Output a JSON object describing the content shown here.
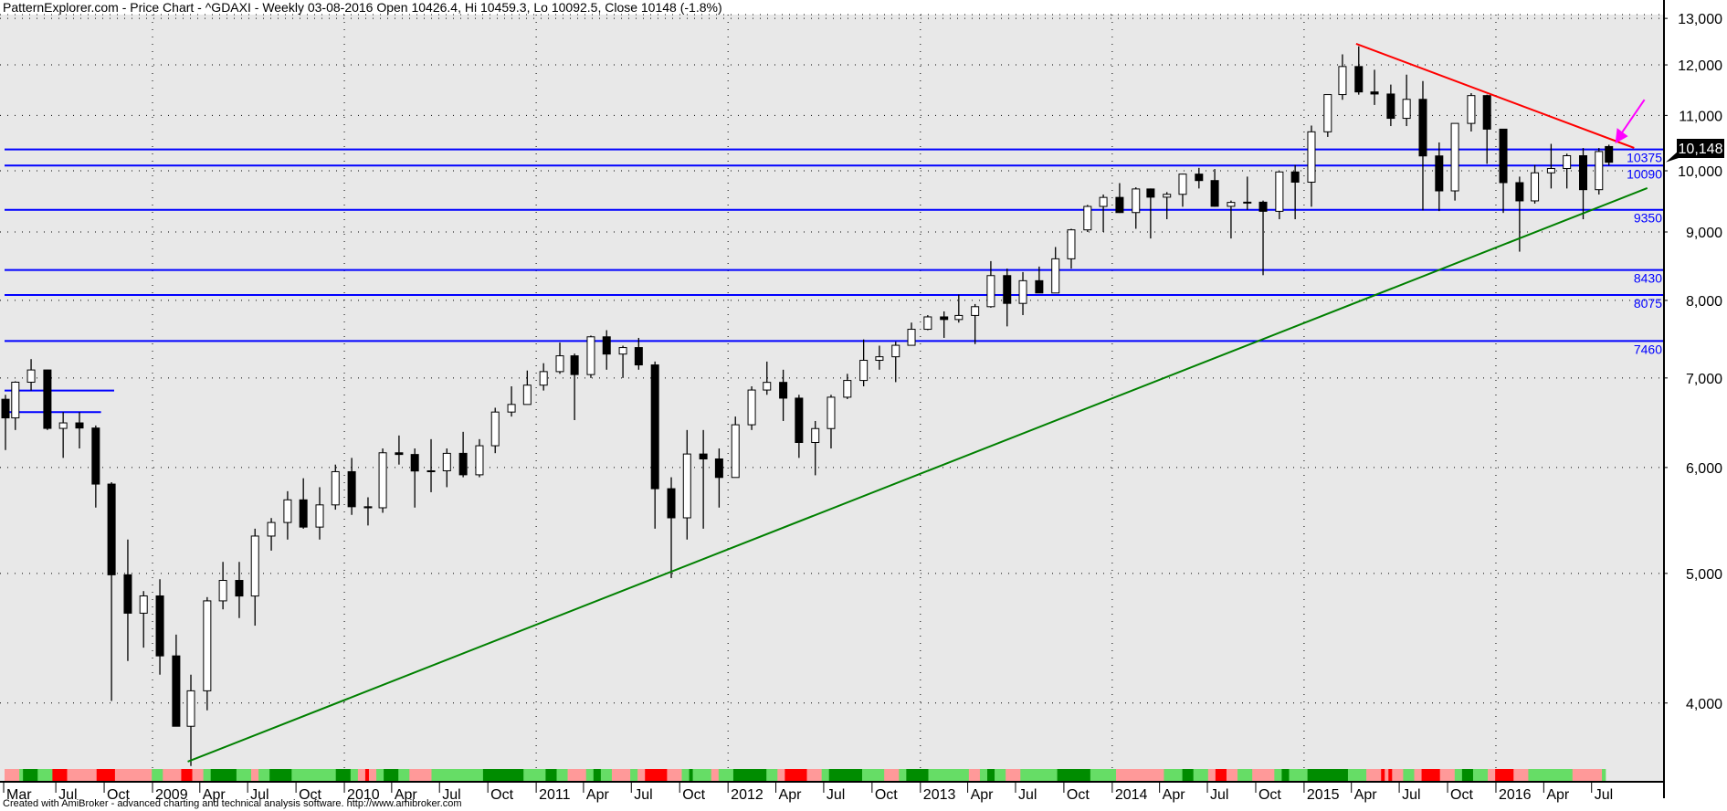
{
  "header": {
    "title": "PatternExplorer.com - Price Chart - ^GDAXI - Weekly 03-08-2016 Open 10426.4, Hi 10459.3, Lo 10092.5, Close 10148 (-1.8%)"
  },
  "footer": {
    "text": "Created with AmiBroker - advanced charting and technical analysis software. http://www.amibroker.com"
  },
  "colors": {
    "background": "#e8e8e8",
    "levels": "#0000ff",
    "support_trend": "#008000",
    "resistance_trend": "#ff0000",
    "arrow": "#ff00ff",
    "band_dark_green": "#008c00",
    "band_light_green": "#66dd66",
    "band_pink": "#ff9999",
    "band_red": "#ff0000"
  },
  "chart_data": {
    "type": "candlestick",
    "symbol": "^GDAXI",
    "interval": "Weekly",
    "y_scale": "log",
    "ylim": [
      3500,
      13300
    ],
    "y_ticks": [
      4000,
      5000,
      6000,
      7000,
      8000,
      9000,
      10000,
      11000,
      12000,
      13000
    ],
    "y_tick_labels": [
      "4,000",
      "5,000",
      "6,000",
      "7,000",
      "8,000",
      "9,000",
      "10,000",
      "11,000",
      "12,000",
      "13,000"
    ],
    "x_ticks": [
      [
        "2008-03-01",
        "Mar"
      ],
      [
        "2008-07-01",
        "Jul"
      ],
      [
        "2008-10-01",
        "Oct"
      ],
      [
        "2009-01-01",
        "2009"
      ],
      [
        "2009-04-01",
        "Apr"
      ],
      [
        "2009-07-01",
        "Jul"
      ],
      [
        "2009-10-01",
        "Oct"
      ],
      [
        "2010-01-01",
        "2010"
      ],
      [
        "2010-04-01",
        "Apr"
      ],
      [
        "2010-07-01",
        "Jul"
      ],
      [
        "2010-10-01",
        "Oct"
      ],
      [
        "2011-01-01",
        "2011"
      ],
      [
        "2011-04-01",
        "Apr"
      ],
      [
        "2011-07-01",
        "Jul"
      ],
      [
        "2011-10-01",
        "Oct"
      ],
      [
        "2012-01-01",
        "2012"
      ],
      [
        "2012-04-01",
        "Apr"
      ],
      [
        "2012-07-01",
        "Jul"
      ],
      [
        "2012-10-01",
        "Oct"
      ],
      [
        "2013-01-01",
        "2013"
      ],
      [
        "2013-04-01",
        "Apr"
      ],
      [
        "2013-07-01",
        "Jul"
      ],
      [
        "2013-10-01",
        "Oct"
      ],
      [
        "2014-01-01",
        "2014"
      ],
      [
        "2014-04-01",
        "Apr"
      ],
      [
        "2014-07-01",
        "Jul"
      ],
      [
        "2014-10-01",
        "Oct"
      ],
      [
        "2015-01-01",
        "2015"
      ],
      [
        "2015-04-01",
        "Apr"
      ],
      [
        "2015-07-01",
        "Jul"
      ],
      [
        "2015-10-01",
        "Oct"
      ],
      [
        "2016-01-01",
        "2016"
      ],
      [
        "2016-04-01",
        "Apr"
      ],
      [
        "2016-07-01",
        "Jul"
      ]
    ],
    "ohlc_columns": [
      "date",
      "open",
      "high",
      "low",
      "close"
    ],
    "ohlc": [
      [
        "2008-03-15",
        6748,
        6800,
        6183,
        6535
      ],
      [
        "2008-04-15",
        6535,
        6960,
        6400,
        6949
      ],
      [
        "2008-05-15",
        6949,
        7231,
        6850,
        7097
      ],
      [
        "2008-06-15",
        7097,
        7100,
        6400,
        6418
      ],
      [
        "2008-07-15",
        6418,
        6600,
        6100,
        6479
      ],
      [
        "2008-08-15",
        6479,
        6600,
        6200,
        6422
      ],
      [
        "2008-09-15",
        6422,
        6450,
        5600,
        5831
      ],
      [
        "2008-10-15",
        5831,
        5850,
        4014,
        4988
      ],
      [
        "2008-11-15",
        4988,
        5300,
        4300,
        4669
      ],
      [
        "2008-12-15",
        4669,
        4850,
        4400,
        4810
      ],
      [
        "2009-01-15",
        4810,
        4950,
        4200,
        4338
      ],
      [
        "2009-02-15",
        4338,
        4500,
        3850,
        3843
      ],
      [
        "2009-03-15",
        3843,
        4200,
        3589,
        4085
      ],
      [
        "2009-04-15",
        4085,
        4800,
        3950,
        4769
      ],
      [
        "2009-05-15",
        4769,
        5100,
        4700,
        4940
      ],
      [
        "2009-06-15",
        4940,
        5100,
        4630,
        4809
      ],
      [
        "2009-07-15",
        4809,
        5400,
        4570,
        5332
      ],
      [
        "2009-08-15",
        5332,
        5500,
        5200,
        5458
      ],
      [
        "2009-09-15",
        5458,
        5760,
        5300,
        5675
      ],
      [
        "2009-10-15",
        5675,
        5890,
        5400,
        5415
      ],
      [
        "2009-11-15",
        5415,
        5800,
        5300,
        5626
      ],
      [
        "2009-12-15",
        5626,
        6030,
        5580,
        5957
      ],
      [
        "2010-01-15",
        5957,
        6100,
        5530,
        5608
      ],
      [
        "2010-02-15",
        5608,
        5700,
        5430,
        5598
      ],
      [
        "2010-03-15",
        5598,
        6200,
        5550,
        6154
      ],
      [
        "2010-04-15",
        6154,
        6340,
        6030,
        6136
      ],
      [
        "2010-05-15",
        6136,
        6200,
        5600,
        5964
      ],
      [
        "2010-06-15",
        5964,
        6300,
        5750,
        5966
      ],
      [
        "2010-07-15",
        5966,
        6200,
        5800,
        6148
      ],
      [
        "2010-08-15",
        6148,
        6380,
        5900,
        5925
      ],
      [
        "2010-09-15",
        5925,
        6300,
        5900,
        6229
      ],
      [
        "2010-10-15",
        6229,
        6650,
        6150,
        6601
      ],
      [
        "2010-11-15",
        6601,
        6900,
        6550,
        6688
      ],
      [
        "2010-12-15",
        6688,
        7090,
        6700,
        6914
      ],
      [
        "2011-01-15",
        6914,
        7180,
        6850,
        7077
      ],
      [
        "2011-02-15",
        7077,
        7440,
        7050,
        7272
      ],
      [
        "2011-03-15",
        7272,
        7300,
        6510,
        7041
      ],
      [
        "2011-04-15",
        7041,
        7530,
        7000,
        7514
      ],
      [
        "2011-05-15",
        7514,
        7600,
        7100,
        7294
      ],
      [
        "2011-06-15",
        7294,
        7400,
        7000,
        7376
      ],
      [
        "2011-07-15",
        7376,
        7500,
        7100,
        7159
      ],
      [
        "2011-08-15",
        7159,
        7200,
        5400,
        5785
      ],
      [
        "2011-09-15",
        5785,
        5900,
        4960,
        5502
      ],
      [
        "2011-10-15",
        5502,
        6400,
        5300,
        6141
      ],
      [
        "2011-11-15",
        6141,
        6400,
        5400,
        6089
      ],
      [
        "2011-12-15",
        6089,
        6200,
        5600,
        5898
      ],
      [
        "2012-01-15",
        5898,
        6550,
        5900,
        6458
      ],
      [
        "2012-02-15",
        6458,
        6900,
        6400,
        6856
      ],
      [
        "2012-03-15",
        6856,
        7200,
        6800,
        6947
      ],
      [
        "2012-04-15",
        6947,
        7100,
        6500,
        6761
      ],
      [
        "2012-05-15",
        6761,
        6800,
        6100,
        6264
      ],
      [
        "2012-06-15",
        6264,
        6500,
        5920,
        6416
      ],
      [
        "2012-07-15",
        6416,
        6800,
        6200,
        6772
      ],
      [
        "2012-08-15",
        6772,
        7050,
        6750,
        6970
      ],
      [
        "2012-09-15",
        6970,
        7480,
        6900,
        7216
      ],
      [
        "2012-10-15",
        7216,
        7400,
        7100,
        7260
      ],
      [
        "2012-11-15",
        7260,
        7450,
        6950,
        7405
      ],
      [
        "2012-12-15",
        7405,
        7700,
        7400,
        7612
      ],
      [
        "2013-01-15",
        7612,
        7800,
        7600,
        7776
      ],
      [
        "2013-02-15",
        7776,
        7850,
        7500,
        7741
      ],
      [
        "2013-03-15",
        7741,
        8080,
        7700,
        7795
      ],
      [
        "2013-04-15",
        7795,
        7950,
        7420,
        7914
      ],
      [
        "2013-05-15",
        7914,
        8560,
        7900,
        8349
      ],
      [
        "2013-06-15",
        8349,
        8450,
        7650,
        7959
      ],
      [
        "2013-07-15",
        7959,
        8400,
        7800,
        8276
      ],
      [
        "2013-08-15",
        8276,
        8480,
        8100,
        8103
      ],
      [
        "2013-09-15",
        8103,
        8770,
        8100,
        8594
      ],
      [
        "2013-10-15",
        8594,
        9050,
        8450,
        9033
      ],
      [
        "2013-11-15",
        9033,
        9430,
        9000,
        9405
      ],
      [
        "2013-12-15",
        9405,
        9600,
        9000,
        9552
      ],
      [
        "2014-01-15",
        9552,
        9790,
        9300,
        9306
      ],
      [
        "2014-02-15",
        9306,
        9720,
        9050,
        9692
      ],
      [
        "2014-03-15",
        9692,
        9700,
        8900,
        9556
      ],
      [
        "2014-04-15",
        9556,
        9640,
        9200,
        9603
      ],
      [
        "2014-05-15",
        9603,
        9950,
        9400,
        9943
      ],
      [
        "2014-06-15",
        9943,
        10050,
        9700,
        9833
      ],
      [
        "2014-07-15",
        9833,
        10030,
        9400,
        9407
      ],
      [
        "2014-08-15",
        9407,
        9500,
        8900,
        9470
      ],
      [
        "2014-09-15",
        9470,
        9900,
        9350,
        9474
      ],
      [
        "2014-10-15",
        9474,
        9500,
        8355,
        9326
      ],
      [
        "2014-11-15",
        9326,
        9990,
        9200,
        9980
      ],
      [
        "2014-12-15",
        9980,
        10100,
        9200,
        9806
      ],
      [
        "2015-01-15",
        9806,
        10810,
        9400,
        10694
      ],
      [
        "2015-02-15",
        10694,
        11400,
        10600,
        11402
      ],
      [
        "2015-03-15",
        11402,
        12220,
        11300,
        11966
      ],
      [
        "2015-04-15",
        11966,
        12390,
        11400,
        11454
      ],
      [
        "2015-05-15",
        11454,
        11900,
        11200,
        11413
      ],
      [
        "2015-06-15",
        11413,
        11600,
        10800,
        10945
      ],
      [
        "2015-07-15",
        10945,
        11800,
        10800,
        11309
      ],
      [
        "2015-08-15",
        11309,
        11670,
        9340,
        10259
      ],
      [
        "2015-09-15",
        10259,
        10500,
        9330,
        9660
      ],
      [
        "2015-10-15",
        9660,
        10850,
        9500,
        10850
      ],
      [
        "2015-11-15",
        10850,
        11430,
        10700,
        11382
      ],
      [
        "2015-12-15",
        11382,
        11400,
        10120,
        10743
      ],
      [
        "2016-01-15",
        10743,
        10750,
        9300,
        9798
      ],
      [
        "2016-02-15",
        9798,
        9900,
        8700,
        9495
      ],
      [
        "2016-03-15",
        9495,
        10100,
        9450,
        9965
      ],
      [
        "2016-04-15",
        9965,
        10475,
        9700,
        10039
      ],
      [
        "2016-05-15",
        10039,
        10300,
        9700,
        10263
      ],
      [
        "2016-06-15",
        10263,
        10400,
        9200,
        9680
      ],
      [
        "2016-07-15",
        9680,
        10400,
        9600,
        10337
      ],
      [
        "2016-08-03",
        10426.4,
        10459.3,
        10092.5,
        10148
      ]
    ],
    "last_close_label": "10,148",
    "last_close": 10148,
    "horizontal_levels": [
      {
        "value": 10375,
        "label": "10375"
      },
      {
        "value": 10090,
        "label": "10090"
      },
      {
        "value": 9350,
        "label": "9350"
      },
      {
        "value": 8430,
        "label": "8430"
      },
      {
        "value": 8075,
        "label": "8075"
      },
      {
        "value": 7460,
        "label": "7460"
      }
    ],
    "short_levels": [
      {
        "value": 6850,
        "start": "2008-03-01",
        "end": "2008-10-20"
      },
      {
        "value": 6600,
        "start": "2008-03-01",
        "end": "2008-09-25"
      }
    ],
    "trendlines": [
      {
        "kind": "support",
        "from": [
          "2009-03-09",
          3616
        ],
        "to": [
          "2016-10-15",
          9706
        ]
      },
      {
        "kind": "resistance",
        "from": [
          "2015-04-10",
          12444
        ],
        "to": [
          "2016-09-20",
          10401
        ]
      }
    ],
    "arrow": {
      "points_to": [
        "2016-08-15",
        10480
      ]
    },
    "band_states_weekly": [
      [
        "p",
        4
      ],
      [
        "g",
        1
      ],
      [
        "G",
        4
      ],
      [
        "g",
        4
      ],
      [
        "R",
        4
      ],
      [
        "p",
        8
      ],
      [
        "R",
        5
      ],
      [
        "p",
        10
      ],
      [
        "g",
        3
      ],
      [
        "p",
        5
      ],
      [
        "R",
        3
      ],
      [
        "p",
        3
      ],
      [
        "g",
        2
      ],
      [
        "G",
        7
      ],
      [
        "g",
        4
      ],
      [
        "p",
        2
      ],
      [
        "g",
        3
      ],
      [
        "G",
        6
      ],
      [
        "g",
        12
      ],
      [
        "G",
        4
      ],
      [
        "g",
        2
      ],
      [
        "p",
        2
      ],
      [
        "R",
        1
      ],
      [
        "p",
        2
      ],
      [
        "g",
        2
      ],
      [
        "G",
        4
      ],
      [
        "g",
        3
      ],
      [
        "p",
        6
      ],
      [
        "g",
        14
      ],
      [
        "G",
        11
      ],
      [
        "g",
        6
      ],
      [
        "G",
        3
      ],
      [
        "g",
        3
      ],
      [
        "p",
        5
      ],
      [
        "g",
        2
      ],
      [
        "G",
        2
      ],
      [
        "g",
        3
      ],
      [
        "p",
        5
      ],
      [
        "g",
        2
      ],
      [
        "p",
        2
      ],
      [
        "R",
        6
      ],
      [
        "p",
        4
      ],
      [
        "g",
        2
      ],
      [
        "G",
        1
      ],
      [
        "g",
        5
      ],
      [
        "p",
        2
      ],
      [
        "g",
        4
      ],
      [
        "G",
        9
      ],
      [
        "g",
        3
      ],
      [
        "p",
        2
      ],
      [
        "R",
        6
      ],
      [
        "p",
        4
      ],
      [
        "g",
        2
      ],
      [
        "G",
        9
      ],
      [
        "g",
        6
      ],
      [
        "p",
        4
      ],
      [
        "g",
        2
      ],
      [
        "G",
        6
      ],
      [
        "g",
        11
      ],
      [
        "p",
        3
      ],
      [
        "g",
        2
      ],
      [
        "G",
        2
      ],
      [
        "g",
        3
      ],
      [
        "p",
        4
      ],
      [
        "g",
        10
      ],
      [
        "G",
        9
      ],
      [
        "g",
        7
      ],
      [
        "p",
        13
      ],
      [
        "g",
        5
      ],
      [
        "G",
        3
      ],
      [
        "g",
        4
      ],
      [
        "p",
        2
      ],
      [
        "R",
        3
      ],
      [
        "p",
        3
      ],
      [
        "g",
        4
      ],
      [
        "p",
        6
      ],
      [
        "g",
        2
      ],
      [
        "G",
        2
      ],
      [
        "g",
        5
      ],
      [
        "G",
        11
      ],
      [
        "g",
        5
      ],
      [
        "p",
        4
      ],
      [
        "R",
        1
      ],
      [
        "p",
        1
      ],
      [
        "R",
        1
      ],
      [
        "p",
        3
      ],
      [
        "g",
        3
      ],
      [
        "p",
        2
      ],
      [
        "R",
        5
      ],
      [
        "p",
        4
      ],
      [
        "g",
        2
      ],
      [
        "G",
        3
      ],
      [
        "g",
        4
      ],
      [
        "p",
        2
      ],
      [
        "R",
        5
      ],
      [
        "p",
        4
      ],
      [
        "g",
        12
      ],
      [
        "p",
        8
      ],
      [
        "g",
        1
      ]
    ]
  }
}
